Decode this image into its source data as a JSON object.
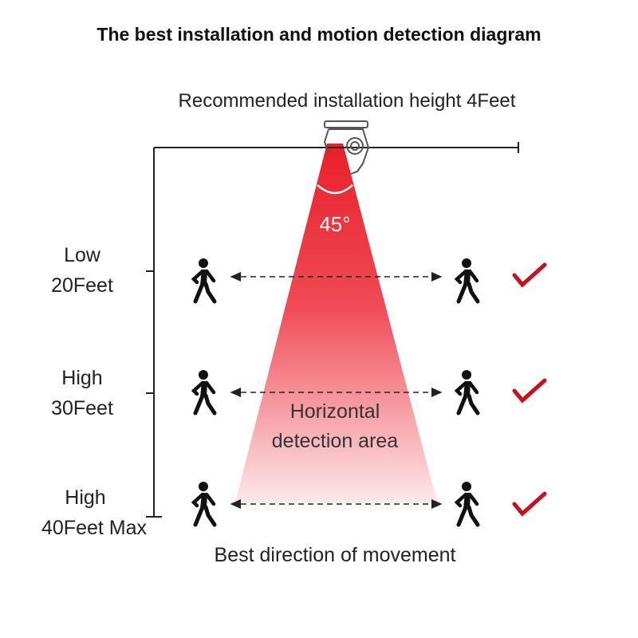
{
  "title": "The best installation and motion detection diagram",
  "install_label": "Recommended installation height 4Feet",
  "angle_label": "45°",
  "area_label": [
    "Horizontal",
    "detection area"
  ],
  "movement_label": "Best direction of movement",
  "levels": [
    {
      "line1": "Low",
      "line2": "20Feet"
    },
    {
      "line1": "High",
      "line2": "30Feet"
    },
    {
      "line1": "High",
      "line2": "40Feet Max"
    }
  ],
  "colors": {
    "cone_top": "#e8202a",
    "cone_bottom": "#fde8ea",
    "check": "#c8101e"
  },
  "icons": [
    "sensor-light-icon",
    "walking-person-icon",
    "dashed-double-arrow-icon",
    "checkmark-icon"
  ]
}
